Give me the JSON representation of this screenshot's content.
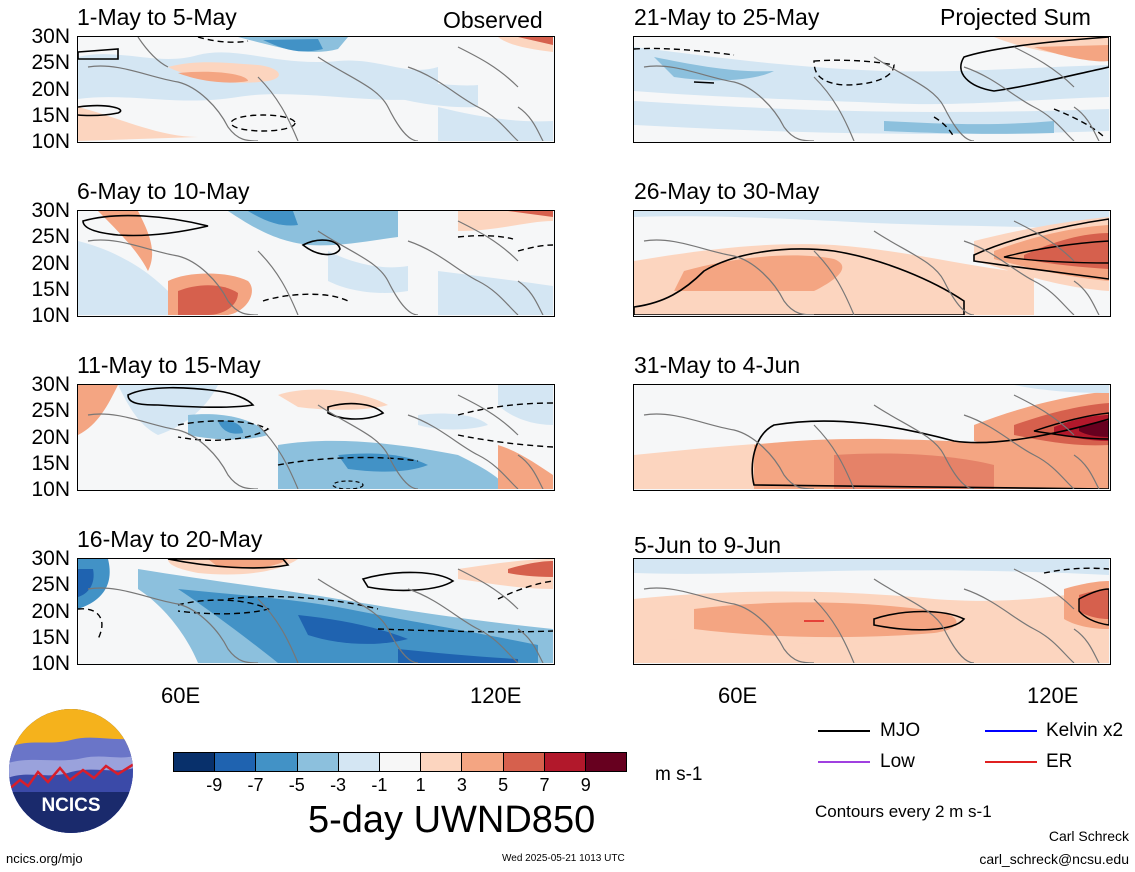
{
  "observed_label": "Observed",
  "projected_label": "Projected Sum",
  "panels_left": [
    {
      "title": "1-May to 5-May"
    },
    {
      "title": "6-May to 10-May"
    },
    {
      "title": "11-May to 15-May"
    },
    {
      "title": "16-May to 20-May"
    }
  ],
  "panels_right": [
    {
      "title": "21-May to 25-May"
    },
    {
      "title": "26-May to 30-May"
    },
    {
      "title": "31-May to 4-Jun"
    },
    {
      "title": "5-Jun to 9-Jun"
    }
  ],
  "lat_ticks": [
    "30N",
    "25N",
    "20N",
    "15N",
    "10N"
  ],
  "lon_ticks": [
    "60E",
    "120E"
  ],
  "colorbar": {
    "labels": [
      "-9",
      "-7",
      "-5",
      "-3",
      "-1",
      "1",
      "3",
      "5",
      "7",
      "9"
    ],
    "colors": [
      "#08306b",
      "#1f63b0",
      "#4292c6",
      "#8cc0dd",
      "#d4e6f3",
      "#f7f7f7",
      "#fcd5bf",
      "#f4a582",
      "#d6604d",
      "#b2182b",
      "#67001f"
    ],
    "units": "m s-1"
  },
  "main_title": "5-day UWND850",
  "legend": {
    "items": [
      {
        "label": "MJO",
        "color": "#000000"
      },
      {
        "label": "Kelvin x2",
        "color": "#0000ff"
      },
      {
        "label": "Low",
        "color": "#a040e0"
      },
      {
        "label": "ER",
        "color": "#e02020"
      }
    ],
    "contours_note": "Contours every 2 m s-1"
  },
  "logo_text": "NCICS",
  "footer": {
    "url": "ncics.org/mjo",
    "timestamp": "Wed 2025-05-21 1013 UTC",
    "author": "Carl Schreck",
    "email": "carl_schreck@ncsu.edu"
  }
}
